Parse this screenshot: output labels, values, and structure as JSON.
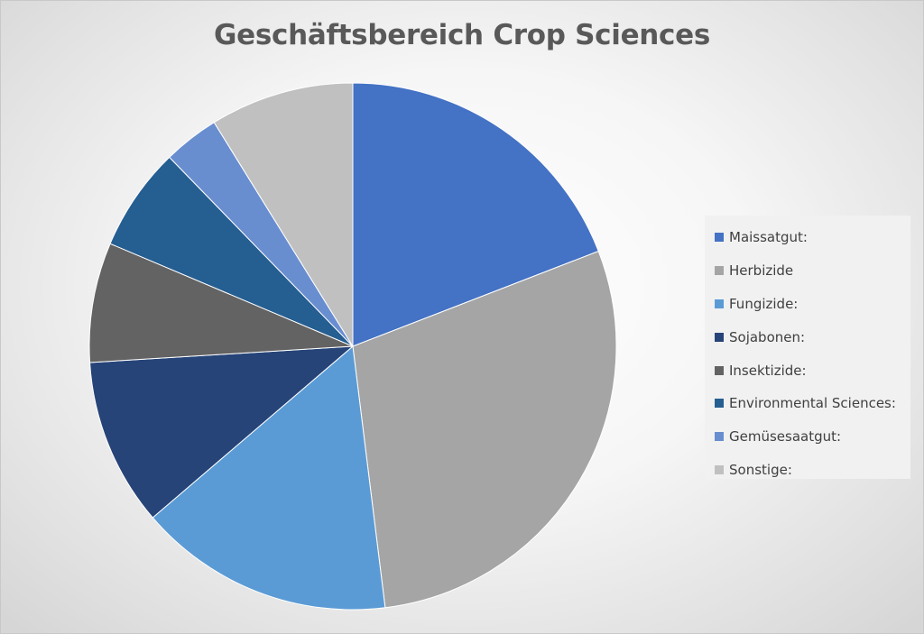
{
  "chart_data": {
    "type": "pie",
    "title": "Geschäftsbereich Crop Sciences",
    "legend_position": "right",
    "slices": [
      {
        "label": "Maissatgut:",
        "value": 19.5,
        "color": "#4472c4"
      },
      {
        "label": "Herbizide",
        "value": 29.5,
        "color": "#a5a5a5"
      },
      {
        "label": "Fungizide:",
        "value": 16.0,
        "color": "#5b9bd5"
      },
      {
        "label": "Sojabonen:",
        "value": 10.5,
        "color": "#264478"
      },
      {
        "label": "Insektizide:",
        "value": 7.5,
        "color": "#636363"
      },
      {
        "label": "Environmental Sciences:",
        "value": 6.5,
        "color": "#255e91"
      },
      {
        "label": "Gemüsesaatgut:",
        "value": 3.5,
        "color": "#698ed0"
      },
      {
        "label": "Sonstige:",
        "value": 9.0,
        "color": "#c0c0c0"
      }
    ]
  }
}
